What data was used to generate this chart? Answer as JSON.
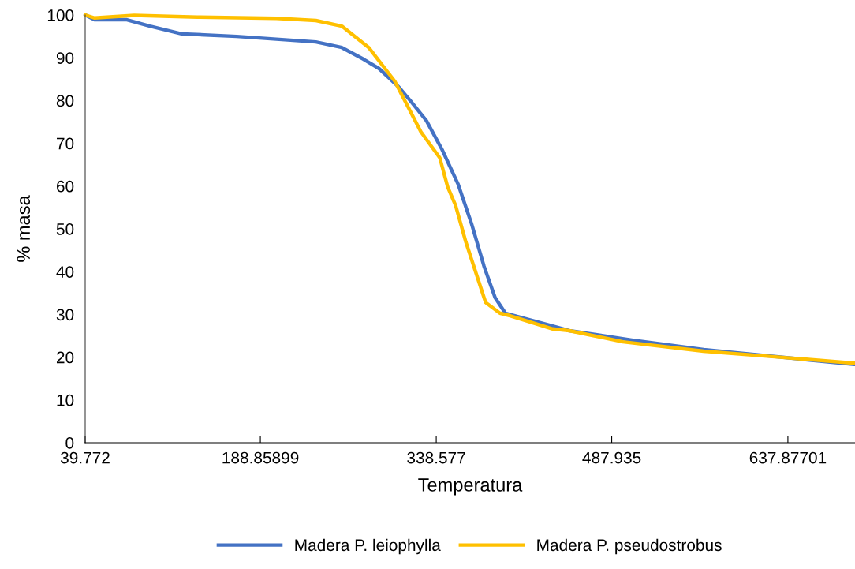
{
  "chart_data": {
    "type": "line",
    "xlabel": "Temperatura",
    "ylabel": "% masa",
    "xlim": [
      39.772,
      695
    ],
    "xticks": [
      39.772,
      188.85899,
      338.577,
      487.935,
      637.87701
    ],
    "ylim": [
      0,
      100
    ],
    "yticks": [
      0,
      10,
      20,
      30,
      40,
      50,
      60,
      70,
      80,
      90,
      100
    ],
    "grid": false,
    "legend": "bottom",
    "marker": "none",
    "line_style": "solid",
    "series": [
      {
        "name": "Madera P. leiophylla",
        "color": "#4472c4",
        "x": [
          39.8,
          47.8,
          74.7,
          94.9,
          121.8,
          168.8,
          236.1,
          258.2,
          276.4,
          289.8,
          306.6,
          316.7,
          330.2,
          343.6,
          357.1,
          368.5,
          379.2,
          388.7,
          397.4,
          437.7,
          451.8,
          504.9,
          566.1,
          694.5
        ],
        "values": [
          100,
          98.9,
          98.9,
          97.4,
          95.6,
          95.0,
          93.7,
          92.4,
          89.7,
          87.5,
          83.2,
          79.9,
          75.3,
          68.5,
          60.5,
          51.3,
          41.3,
          33.9,
          30.3,
          27.3,
          26.2,
          24.0,
          21.8,
          18.3
        ]
      },
      {
        "name": "Madera P. pseudostrobus",
        "color": "#ffc000",
        "x": [
          39.8,
          47.8,
          81.4,
          135.2,
          202.5,
          236.1,
          258.2,
          281.1,
          303.3,
          325.5,
          341.6,
          348.3,
          355.0,
          363.8,
          380.6,
          392.7,
          401.4,
          437.7,
          451.8,
          497.5,
          566.1,
          635.3,
          694.5
        ],
        "values": [
          100,
          99.3,
          99.9,
          99.5,
          99.2,
          98.7,
          97.4,
          92.4,
          84.5,
          72.7,
          66.6,
          59.8,
          55.5,
          46.9,
          32.8,
          30.3,
          29.7,
          26.6,
          26.2,
          23.6,
          21.4,
          19.9,
          18.6
        ]
      }
    ]
  }
}
